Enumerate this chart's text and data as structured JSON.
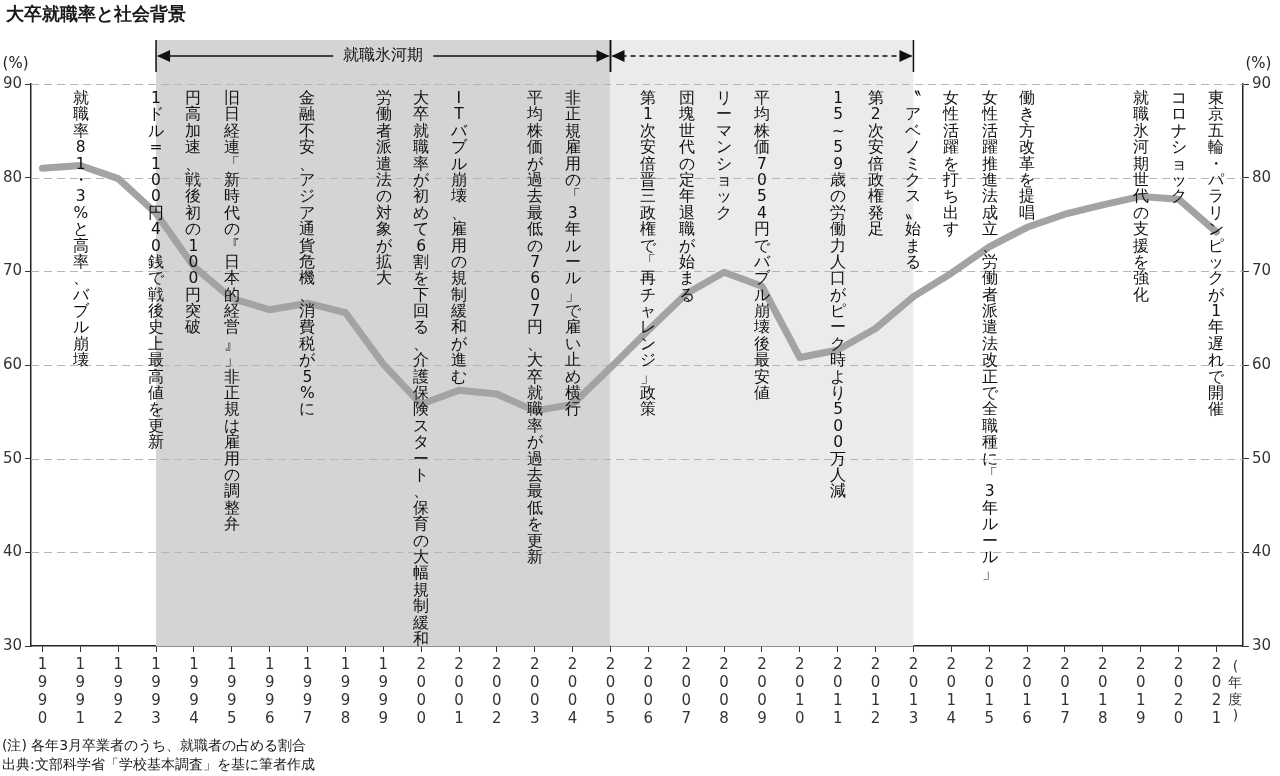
{
  "chart_data": {
    "type": "line",
    "title": "大卒就職率と社会背景",
    "ylabel": "(%)",
    "y2label": "(%)",
    "xlabel": "(年度)",
    "x": [
      1990,
      1991,
      1992,
      1993,
      1994,
      1995,
      1996,
      1997,
      1998,
      1999,
      2000,
      2001,
      2002,
      2003,
      2004,
      2005,
      2006,
      2007,
      2008,
      2009,
      2010,
      2011,
      2012,
      2013,
      2014,
      2015,
      2016,
      2017,
      2018,
      2019,
      2020,
      2021
    ],
    "series": [
      {
        "color": "#a3a3a3",
        "values": [
          81.0,
          81.3,
          79.9,
          76.2,
          70.5,
          67.1,
          65.9,
          66.6,
          65.6,
          60.1,
          55.8,
          57.3,
          56.9,
          55.1,
          55.8,
          59.7,
          63.7,
          67.6,
          69.9,
          68.4,
          60.8,
          61.6,
          63.9,
          67.3,
          69.8,
          72.6,
          74.7,
          76.1,
          77.1,
          78.0,
          77.7,
          74.2
        ]
      }
    ],
    "xlim": [
      1989.7,
      2021.7
    ],
    "xticks": [
      1990,
      1991,
      1992,
      1993,
      1994,
      1995,
      1996,
      1997,
      1998,
      1999,
      2000,
      2001,
      2002,
      2003,
      2004,
      2005,
      2006,
      2007,
      2008,
      2009,
      2010,
      2011,
      2012,
      2013,
      2014,
      2015,
      2016,
      2017,
      2018,
      2019,
      2020,
      2021
    ],
    "ylim": [
      30,
      90
    ],
    "yticks": [
      30,
      40,
      50,
      60,
      70,
      80,
      90
    ],
    "y2lim": [
      30,
      90
    ],
    "y2ticks": [
      30,
      40,
      50,
      60,
      70,
      80,
      90
    ],
    "grid": "y",
    "legend": false,
    "marker": "none",
    "line_style": "solid",
    "bands": [
      {
        "axis": "x",
        "from": 1993,
        "to": 2005,
        "label": "就職氷河期",
        "color": "#d4d4d4"
      },
      {
        "axis": "x",
        "from": 2005,
        "to": 2013,
        "color": "#ebebeb"
      }
    ],
    "annotations": [
      "就職率81・3%と高率、バブル崩壊",
      "1ドル=100円40銭で戦後史上最高値を更新",
      "円高加速、戦後初の100円突破",
      "旧日経連「新時代の『日本的経営』」非正規は雇用の調整弁",
      "金融不安、アジア通貨危機、消費税が5%に",
      "労働者派遣法の対象が拡大",
      "大卒就職率が初めて6割を下回る、介護保険スタート、保育の大幅規制緩和",
      "ITバブル崩壊、雇用の規制緩和が進む",
      "平均株価が過去最低の7607円、大卒就職率が過去最低を更新",
      "非正規雇用の「3年ルール」で雇い止め横行",
      "第1次安倍晋三政権で「再チャレンジ」政策",
      "団塊世代の定年退職が始まる",
      "リーマンショック",
      "平均株価7054円でバブル崩壊後最安値",
      "15~59歳の労働力人口がピーク時より500万人減",
      "第2次安倍政権発足",
      "〝アベノミクス〟始まる",
      "女性活躍を打ち出す",
      "女性活躍推進法成立、労働者派遣法改正で全職種に「3年ルール」",
      "働き方改革を提唱",
      "就職氷河期世代の支援を強化",
      "コロナショック",
      "東京五輪・パラリンピックが1年遅れで開催",
      "(注) 各年3月卒業者のうち、就職者の占める割合",
      "出典:文部科学省「学校基本調査」を基に筆者作成"
    ]
  }
}
